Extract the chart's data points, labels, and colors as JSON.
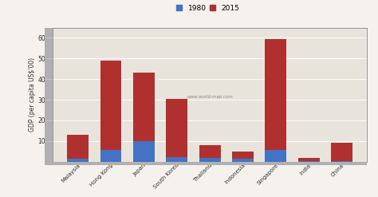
{
  "categories": [
    "Malaysia",
    "Hong Kong",
    "Japan",
    "South Korea",
    "Thailand",
    "Indonesia",
    "Singapore",
    "India",
    "China"
  ],
  "values_1980": [
    12,
    55,
    100,
    20,
    18,
    12,
    58,
    3,
    3
  ],
  "values_2015": [
    130,
    490,
    430,
    305,
    78,
    48,
    595,
    18,
    90
  ],
  "color_1980": "#4472C4",
  "color_2015": "#B03030",
  "ylabel": "GDP (per capita US$'00)",
  "ylim": [
    0,
    650
  ],
  "yticks": [
    0,
    100,
    200,
    300,
    400,
    500,
    600
  ],
  "bg_color": "#f5f2ee",
  "plot_bg": "#e8e4dc",
  "bar_width": 0.65,
  "watermark": "www.world-map.com",
  "wall_color": "#b0b0b0",
  "grid_color": "#ffffff",
  "spine_color": "#888888"
}
